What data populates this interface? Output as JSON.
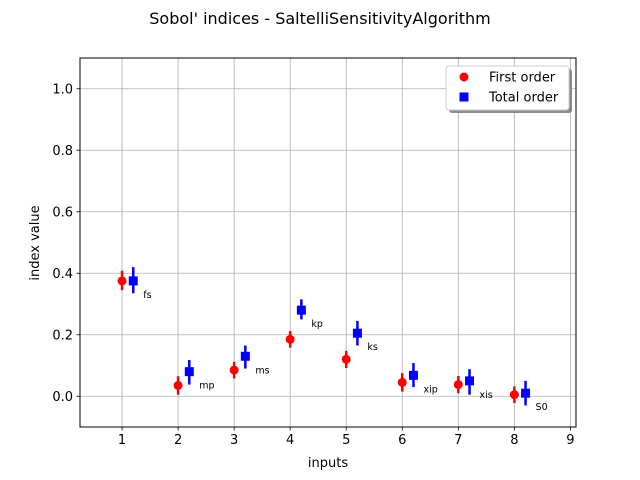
{
  "chart_data": {
    "type": "scatter",
    "title": "Sobol' indices - SaltelliSensitivityAlgorithm",
    "xlabel": "inputs",
    "ylabel": "index value",
    "xlim": [
      0.25,
      9.1
    ],
    "ylim": [
      -0.1,
      1.1
    ],
    "xticks": [
      1,
      2,
      3,
      4,
      5,
      6,
      7,
      8,
      9
    ],
    "yticks": [
      0.0,
      0.2,
      0.4,
      0.6,
      0.8,
      1.0
    ],
    "xtick_labels": [
      "1",
      "2",
      "3",
      "4",
      "5",
      "6",
      "7",
      "8",
      "9"
    ],
    "ytick_labels": [
      "0.0",
      "0.2",
      "0.4",
      "0.6",
      "0.8",
      "1.0"
    ],
    "grid": true,
    "legend_position": "top-right",
    "inputs": [
      "fs",
      "mp",
      "ms",
      "kp",
      "ks",
      "xip",
      "xis",
      "S0"
    ],
    "series": [
      {
        "name": "First order",
        "color": "#ff0000",
        "marker": "circle",
        "x": [
          1,
          2,
          3,
          4,
          5,
          6,
          7,
          8
        ],
        "y": [
          0.375,
          0.035,
          0.085,
          0.185,
          0.12,
          0.045,
          0.038,
          0.005
        ],
        "y_low": [
          0.345,
          0.005,
          0.058,
          0.158,
          0.092,
          0.015,
          0.01,
          -0.022
        ],
        "y_high": [
          0.408,
          0.065,
          0.112,
          0.212,
          0.148,
          0.075,
          0.066,
          0.032
        ]
      },
      {
        "name": "Total order",
        "color": "#0000ff",
        "marker": "square",
        "x": [
          1.2,
          2.2,
          3.2,
          4.2,
          5.2,
          6.2,
          7.2,
          8.2
        ],
        "y": [
          0.375,
          0.08,
          0.13,
          0.28,
          0.205,
          0.068,
          0.05,
          0.01
        ],
        "y_low": [
          0.335,
          0.038,
          0.09,
          0.25,
          0.165,
          0.03,
          0.005,
          -0.03
        ],
        "y_high": [
          0.42,
          0.118,
          0.165,
          0.315,
          0.245,
          0.108,
          0.088,
          0.05
        ]
      }
    ]
  }
}
